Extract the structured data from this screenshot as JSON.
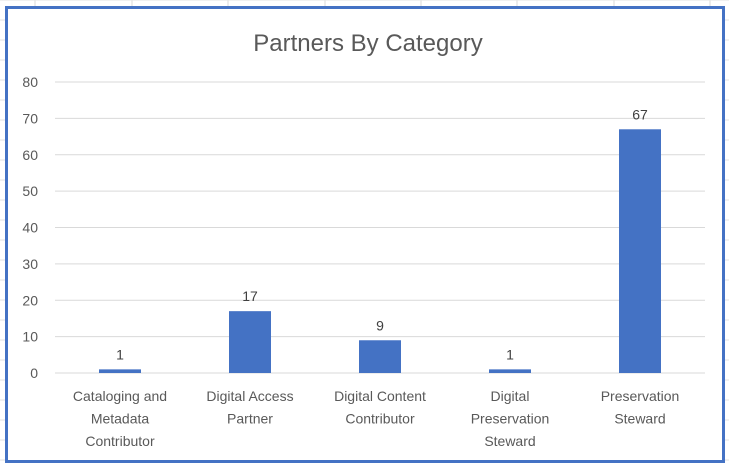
{
  "chart_data": {
    "type": "bar",
    "title": "Partners By Category",
    "xlabel": "",
    "ylabel": "",
    "categories": [
      [
        "Cataloging and",
        "Metadata",
        "Contributor"
      ],
      [
        "Digital Access",
        "Partner"
      ],
      [
        "Digital Content",
        "Contributor"
      ],
      [
        "Digital",
        "Preservation",
        "Steward"
      ],
      [
        "Preservation",
        "Steward"
      ]
    ],
    "values": [
      1,
      17,
      9,
      1,
      67
    ],
    "ylim": [
      0,
      80
    ],
    "yticks": [
      0,
      10,
      20,
      30,
      40,
      50,
      60,
      70,
      80
    ],
    "grid": true,
    "legend": "none",
    "bar_color": "#4472c4",
    "data_labels": true
  }
}
